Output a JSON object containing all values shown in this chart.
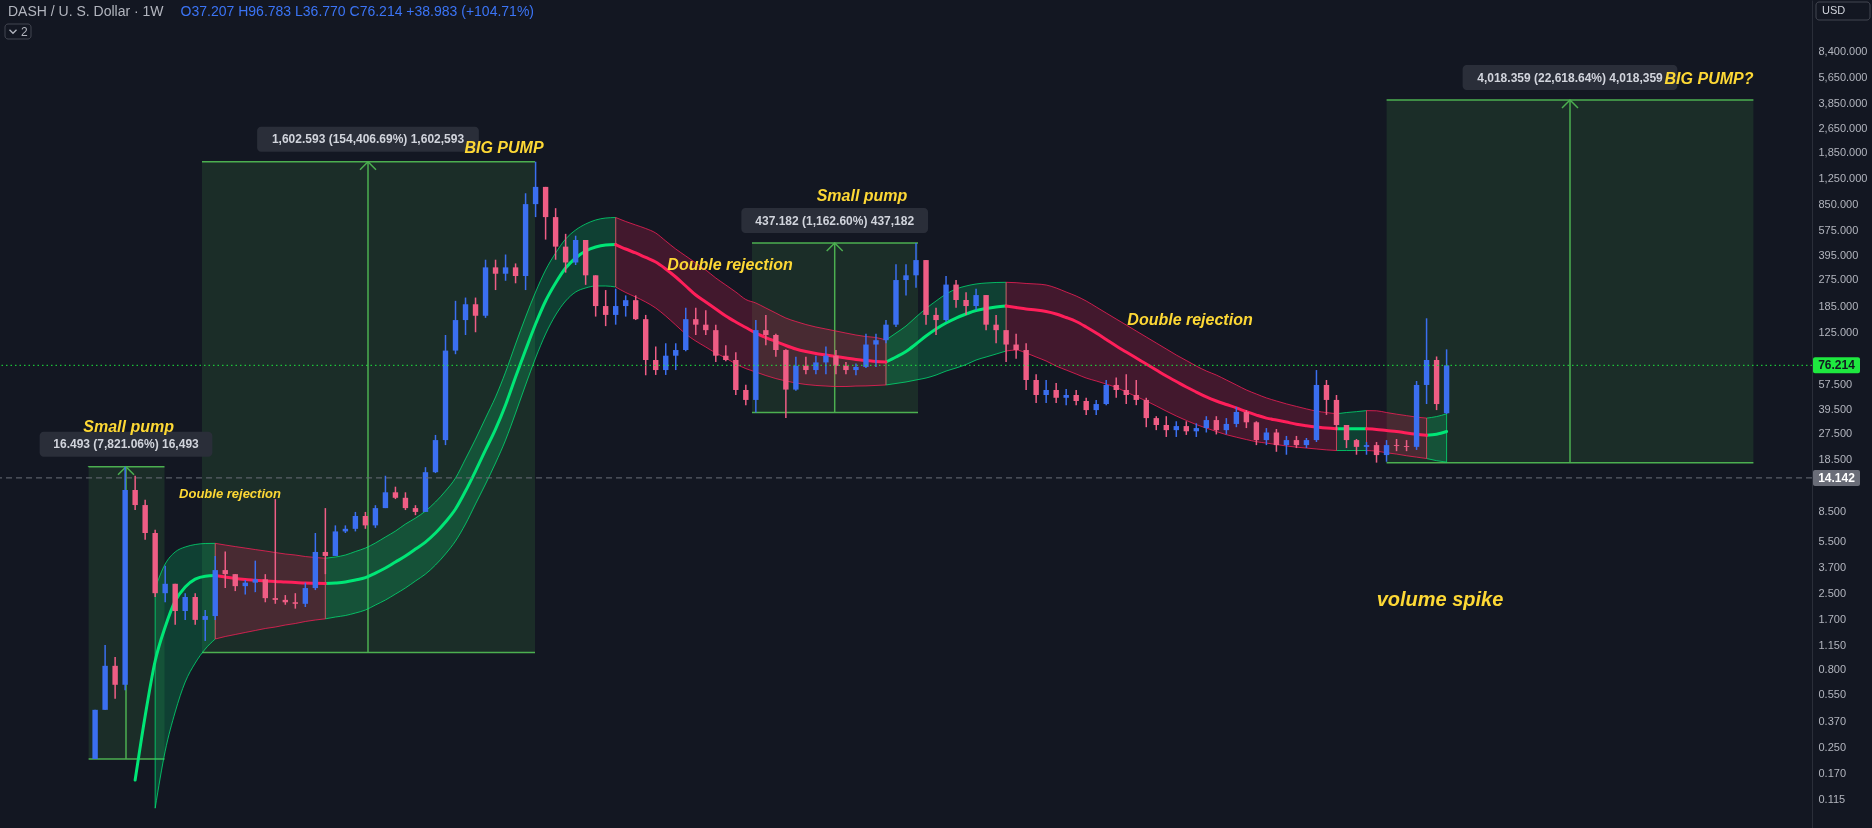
{
  "chart_data": {
    "type": "candlestick",
    "title": "DASH / U. S. Dollar · 1W",
    "subtitle": "O37.207 H96.783 L36.770 C76.214 +38.983 (+104.71%)",
    "ylabel": "USD",
    "log": true,
    "ylim": [
      0.0751,
      18020
    ],
    "yticks": [
      {
        "value": 8400,
        "label": "8,400.000"
      },
      {
        "value": 5650,
        "label": "5,650.000"
      },
      {
        "value": 3850,
        "label": "3,850.000"
      },
      {
        "value": 2650,
        "label": "2,650.000"
      },
      {
        "value": 1850,
        "label": "1,850.000"
      },
      {
        "value": 1250,
        "label": "1,250.000"
      },
      {
        "value": 850,
        "label": "850.000"
      },
      {
        "value": 575,
        "label": "575.000"
      },
      {
        "value": 395,
        "label": "395.000"
      },
      {
        "value": 275,
        "label": "275.000"
      },
      {
        "value": 185,
        "label": "185.000"
      },
      {
        "value": 125,
        "label": "125.000"
      },
      {
        "value": 57.5,
        "label": "57.500"
      },
      {
        "value": 39.5,
        "label": "39.500"
      },
      {
        "value": 27.5,
        "label": "27.500"
      },
      {
        "value": 18.5,
        "label": "18.500"
      },
      {
        "value": 8.5,
        "label": "8.500"
      },
      {
        "value": 5.5,
        "label": "5.500"
      },
      {
        "value": 3.7,
        "label": "3.700"
      },
      {
        "value": 2.5,
        "label": "2.500"
      },
      {
        "value": 1.7,
        "label": "1.700"
      },
      {
        "value": 1.15,
        "label": "1.150"
      },
      {
        "value": 0.8,
        "label": "0.800"
      },
      {
        "value": 0.55,
        "label": "0.550"
      },
      {
        "value": 0.37,
        "label": "0.370"
      },
      {
        "value": 0.25,
        "label": "0.250"
      },
      {
        "value": 0.17,
        "label": "0.170"
      },
      {
        "value": 0.115,
        "label": "0.115"
      }
    ],
    "categories": [
      null,
      null,
      null,
      null,
      null,
      null,
      null,
      null,
      null,
      null,
      null,
      null,
      null,
      null,
      null,
      null,
      null,
      null,
      null,
      null,
      null,
      null,
      null,
      null,
      null,
      null,
      null,
      null,
      null,
      null,
      null,
      null,
      null,
      null,
      null,
      null,
      null,
      null,
      null,
      null,
      null,
      null,
      null,
      null,
      null,
      null,
      null,
      null,
      null,
      null,
      null,
      null,
      null,
      null,
      null,
      null,
      null,
      null,
      null,
      null,
      null,
      null,
      null,
      null,
      null,
      null,
      null,
      null,
      null,
      null,
      null,
      null,
      null,
      null,
      null,
      null,
      null,
      null,
      null,
      null,
      null,
      null,
      null,
      null,
      null,
      null,
      null,
      null,
      null,
      null,
      null,
      null,
      null,
      null,
      null,
      null,
      null,
      null,
      null,
      null,
      null,
      null,
      null,
      null,
      null,
      null,
      null,
      null,
      null,
      null,
      null,
      null,
      null,
      null,
      null,
      null,
      null,
      null,
      null,
      null,
      null,
      null,
      null,
      null,
      null,
      null,
      null,
      null,
      null,
      null,
      null,
      null,
      null,
      null,
      null,
      null,
      null,
      null,
      null,
      null,
      null,
      null,
      null,
      null,
      null,
      null,
      null,
      null,
      null,
      null,
      null,
      null,
      null,
      null,
      null,
      null,
      null,
      null,
      null,
      null,
      null,
      null,
      null,
      null,
      null,
      null,
      null,
      null,
      null,
      null,
      null,
      null,
      null,
      null,
      null,
      null,
      null,
      null,
      null,
      null,
      null
    ],
    "ohlc": [
      null,
      null,
      null,
      null,
      null,
      null,
      null,
      null,
      null,
      [
        0.211,
        0.44,
        0.211,
        0.44
      ],
      [
        0.44,
        1.16,
        0.44,
        0.85
      ],
      [
        0.85,
        0.97,
        0.52,
        0.64
      ],
      [
        0.64,
        16.7,
        0.59,
        11.8
      ],
      [
        11.8,
        14.6,
        8.74,
        9.42
      ],
      [
        9.42,
        10.2,
        5.6,
        6.2
      ],
      [
        6.2,
        6.5,
        2.38,
        2.52
      ],
      [
        2.52,
        3.8,
        2.2,
        2.9
      ],
      [
        2.9,
        2.9,
        1.57,
        1.93
      ],
      [
        1.93,
        2.52,
        1.69,
        2.38
      ],
      [
        2.38,
        2.52,
        1.57,
        1.69
      ],
      [
        1.69,
        1.96,
        1.23,
        1.79
      ],
      [
        1.79,
        4.4,
        1.69,
        3.56
      ],
      [
        3.56,
        4.7,
        2.72,
        3.35
      ],
      [
        3.35,
        3.35,
        2.6,
        2.8
      ],
      [
        2.8,
        3.07,
        2.47,
        2.95
      ],
      [
        2.95,
        4.1,
        2.56,
        3.1
      ],
      [
        3.1,
        3.35,
        2.2,
        2.34
      ],
      [
        2.34,
        10.3,
        2.15,
        2.28
      ],
      [
        2.28,
        2.45,
        2.12,
        2.2
      ],
      [
        2.2,
        2.52,
        2.0,
        2.15
      ],
      [
        2.15,
        2.95,
        2.05,
        2.72
      ],
      [
        2.72,
        6.2,
        2.64,
        4.67
      ],
      [
        4.67,
        9.0,
        3.35,
        4.4
      ],
      [
        4.4,
        6.95,
        4.4,
        6.35
      ],
      [
        6.35,
        6.95,
        6.2,
        6.6
      ],
      [
        6.6,
        8.5,
        6.35,
        8.0
      ],
      [
        8.0,
        8.5,
        6.6,
        6.95
      ],
      [
        6.95,
        9.4,
        6.7,
        9.0
      ],
      [
        9.0,
        14.6,
        9.0,
        11.4
      ],
      [
        11.4,
        12.4,
        10.3,
        10.5
      ],
      [
        10.5,
        11.4,
        8.74,
        9.0
      ],
      [
        9.0,
        9.4,
        8.1,
        8.5
      ],
      [
        8.5,
        16.6,
        8.5,
        15.4
      ],
      [
        15.4,
        26.9,
        15.2,
        24.9
      ],
      [
        24.9,
        120,
        23.1,
        95
      ],
      [
        95,
        200,
        90,
        150
      ],
      [
        150,
        210,
        120,
        190
      ],
      [
        190,
        210,
        125,
        160
      ],
      [
        160,
        370,
        155,
        330
      ],
      [
        330,
        370,
        235,
        300
      ],
      [
        300,
        400,
        270,
        330
      ],
      [
        330,
        350,
        260,
        290
      ],
      [
        290,
        1000,
        235,
        850
      ],
      [
        850,
        1603.6,
        700,
        1100
      ],
      [
        1100,
        1100,
        500,
        700
      ],
      [
        700,
        800,
        370,
        450
      ],
      [
        450,
        545,
        305,
        355
      ],
      [
        355,
        530,
        342,
        497
      ],
      [
        497,
        497,
        254,
        293
      ],
      [
        293,
        293,
        158,
        185
      ],
      [
        185,
        235,
        137,
        162
      ],
      [
        162,
        240,
        140,
        185
      ],
      [
        185,
        217,
        158,
        202
      ],
      [
        202,
        217,
        150,
        152
      ],
      [
        152,
        162,
        65.7,
        82.5
      ],
      [
        82.5,
        101,
        66,
        71
      ],
      [
        71,
        106,
        66,
        88
      ],
      [
        88,
        106,
        71,
        95.8
      ],
      [
        95.8,
        180,
        94,
        152
      ],
      [
        152,
        180,
        120,
        140
      ],
      [
        140,
        174,
        120,
        129
      ],
      [
        129,
        140,
        80,
        88
      ],
      [
        88,
        103,
        81,
        82.5
      ],
      [
        82.5,
        92.5,
        48.9,
        52.7
      ],
      [
        52.7,
        57,
        42,
        45.4
      ],
      [
        45.4,
        150,
        37.6,
        129
      ],
      [
        129,
        162,
        103,
        120
      ],
      [
        120,
        122,
        86.5,
        95.8
      ],
      [
        95.8,
        97,
        34.6,
        53
      ],
      [
        53,
        86.5,
        52,
        75.6
      ],
      [
        75.6,
        86.5,
        66.6,
        71
      ],
      [
        71,
        88,
        66.6,
        79.6
      ],
      [
        79.6,
        101,
        66.6,
        88
      ],
      [
        88,
        95.8,
        66.6,
        75.6
      ],
      [
        75.6,
        80,
        66.6,
        71
      ],
      [
        71,
        78.4,
        65.6,
        74.4
      ],
      [
        74.4,
        122,
        73.3,
        104
      ],
      [
        104,
        122,
        74.4,
        111
      ],
      [
        111,
        150,
        106,
        140
      ],
      [
        140,
        346,
        135,
        273
      ],
      [
        273,
        346,
        217,
        293
      ],
      [
        293,
        474.8,
        243,
        368
      ],
      [
        368,
        368,
        140,
        162
      ],
      [
        162,
        180,
        120,
        150
      ],
      [
        150,
        290,
        146,
        255
      ],
      [
        255,
        273,
        180,
        202.5
      ],
      [
        202.5,
        227,
        162,
        185
      ],
      [
        185,
        240,
        174,
        218
      ],
      [
        218,
        218,
        129,
        140
      ],
      [
        140,
        162,
        106,
        129
      ],
      [
        129,
        129,
        80,
        104
      ],
      [
        104,
        122,
        84,
        95.8
      ],
      [
        95.8,
        106,
        52.7,
        61.2
      ],
      [
        61.2,
        66.6,
        43.3,
        48.9
      ],
      [
        48.9,
        61.2,
        43.3,
        52.7
      ],
      [
        52.7,
        58.5,
        43.3,
        46.9
      ],
      [
        46.9,
        53.4,
        42,
        48.9
      ],
      [
        48.9,
        52.7,
        42,
        44.7
      ],
      [
        44.7,
        46.9,
        36.3,
        39
      ],
      [
        39,
        45.4,
        36.3,
        42.7
      ],
      [
        42.7,
        61.2,
        42,
        56.8
      ],
      [
        56.8,
        63.6,
        46.9,
        52.7
      ],
      [
        52.7,
        66.6,
        42.7,
        48.9
      ],
      [
        48.9,
        61.2,
        42,
        45.4
      ],
      [
        45.4,
        46.9,
        30.2,
        34.6
      ],
      [
        34.6,
        35.6,
        28.9,
        31.2
      ],
      [
        31.2,
        35.6,
        26.1,
        28.9
      ],
      [
        28.9,
        33,
        26.1,
        30.7
      ],
      [
        30.7,
        33,
        26.9,
        28.4
      ],
      [
        28.4,
        32,
        26.1,
        29.8
      ],
      [
        29.8,
        35.6,
        27.9,
        33.6
      ],
      [
        33.6,
        35.6,
        27.1,
        28.9
      ],
      [
        28.9,
        34.6,
        27.1,
        31.7
      ],
      [
        31.7,
        40.9,
        30.2,
        37.9
      ],
      [
        37.9,
        39,
        29.8,
        32.5
      ],
      [
        32.5,
        33,
        23.1,
        24.9
      ],
      [
        24.9,
        29.8,
        23.1,
        27.9
      ],
      [
        27.9,
        29.4,
        20.9,
        23.1
      ],
      [
        23.1,
        26.5,
        20,
        24.9
      ],
      [
        24.9,
        26.5,
        22.1,
        23.1
      ],
      [
        23.1,
        25.7,
        22.1,
        24.9
      ],
      [
        24.9,
        71,
        24.2,
        56.8
      ],
      [
        56.8,
        61.2,
        36.3,
        45.4
      ],
      [
        45.4,
        48.9,
        28.9,
        31.2
      ],
      [
        31.2,
        31.2,
        22.1,
        24.9
      ],
      [
        24.9,
        25.3,
        20,
        22.5
      ],
      [
        22.5,
        24.2,
        20,
        23.1
      ],
      [
        23.1,
        24.2,
        17.77,
        19.9
      ],
      [
        19.9,
        24.9,
        18,
        23.1
      ],
      [
        23.1,
        25.3,
        21.1,
        22.8
      ],
      [
        22.8,
        24.9,
        21.1,
        22.5
      ],
      [
        22.5,
        60.3,
        21.5,
        56.8
      ],
      [
        56.8,
        154,
        42.7,
        82.5
      ],
      [
        82.5,
        87,
        39,
        42.7
      ],
      [
        37.207,
        96.783,
        36.77,
        76.214
      ],
      null,
      null,
      null,
      null,
      null,
      null,
      null,
      null,
      null,
      null,
      null,
      null,
      null,
      null,
      null,
      null,
      null,
      null,
      null,
      null,
      null,
      null,
      null,
      null,
      null,
      null,
      null,
      null,
      null,
      null,
      null,
      null,
      null,
      null,
      null,
      null
    ],
    "colors": [
      null,
      null,
      null,
      null,
      null,
      null,
      null,
      null,
      null,
      "#3b6ff0",
      "#3b6ff0",
      "#ef5d85",
      "#3b6ff0",
      "#ef5d85",
      "#ef5d85",
      "#ef5d85",
      "#3b6ff0",
      "#ef5d85",
      "#3b6ff0",
      "#ef5d85",
      "#3b6ff0",
      "#3b6ff0",
      "#ef5d85",
      "#ef5d85",
      "#3b6ff0",
      "#3b6ff0",
      "#ef5d85",
      "#ef5d85",
      "#ef5d85",
      "#ef5d85",
      "#3b6ff0",
      "#3b6ff0",
      "#ef5d85",
      "#3b6ff0",
      "#3b6ff0",
      "#3b6ff0",
      "#ef5d85",
      "#3b6ff0",
      "#3b6ff0",
      "#ef5d85",
      "#ef5d85",
      "#ef5d85",
      "#3b6ff0",
      "#3b6ff0",
      "#3b6ff0",
      "#3b6ff0",
      "#3b6ff0",
      "#ef5d85",
      "#3b6ff0",
      "#ef5d85",
      "#3b6ff0",
      "#ef5d85",
      "#3b6ff0",
      "#3b6ff0",
      "#ef5d85",
      "#ef5d85",
      "#ef5d85",
      "#3b6ff0",
      "#ef5d85",
      "#ef5d85",
      "#ef5d85",
      "#3b6ff0",
      "#3b6ff0",
      "#ef5d85",
      "#ef5d85",
      "#ef5d85",
      "#3b6ff0",
      "#3b6ff0",
      "#3b6ff0",
      "#ef5d85",
      "#ef5d85",
      "#ef5d85",
      "#ef5d85",
      "#ef5d85",
      "#ef5d85",
      "#3b6ff0",
      "#ef5d85",
      "#ef5d85",
      "#ef5d85",
      "#3b6ff0",
      "#ef5d85",
      "#3b6ff0",
      "#3b6ff0",
      "#ef5d85",
      "#ef5d85",
      "#3b6ff0",
      "#3b6ff0",
      "#3b6ff0",
      "#3b6ff0",
      "#3b6ff0",
      "#3b6ff0",
      "#3b6ff0",
      "#ef5d85",
      "#ef5d85",
      "#3b6ff0",
      "#ef5d85",
      "#ef5d85",
      "#3b6ff0",
      "#ef5d85",
      "#ef5d85",
      "#ef5d85",
      "#ef5d85",
      "#ef5d85",
      "#ef5d85",
      "#3b6ff0",
      "#ef5d85",
      "#3b6ff0",
      "#ef5d85",
      "#ef5d85",
      "#3b6ff0",
      "#3b6ff0",
      "#ef5d85",
      "#ef5d85",
      "#ef5d85",
      "#ef5d85",
      "#ef5d85",
      "#ef5d85",
      "#3b6ff0",
      "#ef5d85",
      "#3b6ff0",
      "#3b6ff0",
      "#ef5d85",
      "#3b6ff0",
      "#3b6ff0",
      "#ef5d85",
      "#ef5d85",
      "#3b6ff0",
      "#ef5d85",
      "#3b6ff0",
      "#ef5d85",
      "#3b6ff0",
      "#3b6ff0",
      "#ef5d85",
      "#ef5d85",
      "#ef5d85",
      "#ef5d85",
      "#3b6ff0",
      "#ef5d85",
      "#3b6ff0",
      "#ef5d85",
      "#ef5d85",
      "#3b6ff0",
      "#3b6ff0",
      "#ef5d85",
      "#3b6ff0",
      null,
      null,
      null,
      null,
      null,
      null,
      null,
      null,
      null,
      null,
      null,
      null,
      null,
      null,
      null,
      null,
      null,
      null,
      null,
      null,
      null,
      null,
      null,
      null,
      null,
      null,
      null,
      null,
      null,
      null,
      null,
      null,
      null,
      null,
      null,
      null
    ],
    "series": [
      {
        "type": "line",
        "color": "#00e676",
        "values": [
          null,
          null,
          null,
          null,
          null,
          null,
          null,
          null,
          null,
          null,
          null,
          null,
          null,
          0.154,
          0.401,
          0.913,
          1.519,
          2.241,
          2.765,
          3.11,
          3.25,
          3.28,
          null,
          null,
          null,
          null,
          null,
          null,
          null,
          null,
          null,
          null,
          2.909,
          2.935,
          2.979,
          3.07,
          3.182,
          3.404,
          3.673,
          4.018,
          4.397,
          4.877,
          5.415,
          6.196,
          7.308,
          8.88,
          11.62,
          15.67,
          21.5,
          29.37,
          42.13,
          63.9,
          95.8,
          141.4,
          199.5,
          261.2,
          326.9,
          379.7,
          421.6,
          447.5,
          461.1,
          464.5,
          null,
          null,
          null,
          null,
          null,
          null,
          null,
          null,
          null,
          null,
          null,
          null,
          null,
          null,
          null,
          null,
          null,
          null,
          null,
          null,
          null,
          null,
          null,
          null,
          null,
          null,
          80.1,
          86.3,
          93.7,
          104.8,
          118.1,
          131.2,
          143.5,
          154.6,
          164.2,
          173.0,
          178.3,
          182.4,
          185.1,
          null,
          null,
          null,
          null,
          null,
          null,
          null,
          null,
          null,
          null,
          null,
          null,
          null,
          null,
          null,
          null,
          null,
          null,
          null,
          null,
          null,
          null,
          null,
          null,
          null,
          null,
          null,
          null,
          null,
          null,
          null,
          null,
          29.5,
          29.5,
          29.5,
          29.5,
          null,
          null,
          null,
          null,
          null,
          26.8,
          27.2,
          28.3,
          null,
          null,
          null,
          null,
          null,
          null,
          null,
          null,
          null,
          null,
          null,
          null,
          null,
          null,
          null,
          null,
          null,
          null,
          null,
          null,
          null,
          null,
          null,
          null,
          null,
          null,
          null,
          null,
          null,
          null,
          null,
          null,
          null,
          null,
          null,
          null
        ],
        "upper": [
          null,
          null,
          null,
          null,
          null,
          null,
          null,
          null,
          null,
          null,
          null,
          null,
          null,
          null,
          null,
          2.72,
          3.9,
          4.67,
          5.03,
          5.22,
          5.3,
          5.31,
          null,
          null,
          null,
          null,
          null,
          null,
          null,
          null,
          null,
          null,
          4.25,
          4.33,
          4.46,
          4.7,
          4.95,
          5.34,
          5.84,
          6.38,
          7.09,
          7.75,
          8.61,
          9.86,
          11.62,
          14.11,
          18.79,
          25.26,
          34.6,
          47.46,
          68.9,
          104.8,
          157.0,
          228.2,
          317.2,
          409.2,
          504.4,
          577.1,
          631.3,
          670.3,
          690.6,
          695.8,
          null,
          null,
          null,
          null,
          null,
          null,
          null,
          null,
          null,
          null,
          null,
          null,
          null,
          null,
          null,
          null,
          null,
          null,
          null,
          null,
          null,
          null,
          null,
          null,
          null,
          null,
          111.3,
          123.5,
          137.2,
          157.0,
          178.3,
          199.5,
          221.4,
          238.8,
          249.7,
          257.3,
          261.2,
          263.2,
          263.9,
          null,
          null,
          null,
          null,
          null,
          null,
          null,
          null,
          null,
          null,
          null,
          null,
          null,
          null,
          null,
          null,
          null,
          null,
          null,
          null,
          null,
          null,
          null,
          null,
          null,
          null,
          null,
          null,
          null,
          null,
          null,
          null,
          36.9,
          37.6,
          38.1,
          38.7,
          null,
          null,
          null,
          null,
          null,
          34.6,
          35.4,
          36.9,
          null,
          null,
          null,
          null,
          null,
          null,
          null,
          null,
          null,
          null,
          null,
          null,
          null,
          null,
          null,
          null,
          null,
          null,
          null,
          null,
          null,
          null,
          null,
          null,
          null,
          null,
          null,
          null,
          null,
          null,
          null,
          null,
          null,
          null,
          null,
          null
        ],
        "lower": [
          null,
          null,
          null,
          null,
          null,
          null,
          null,
          null,
          null,
          null,
          null,
          null,
          null,
          null,
          null,
          0.101,
          0.237,
          0.426,
          0.667,
          0.886,
          1.093,
          1.27,
          null,
          null,
          null,
          null,
          null,
          null,
          null,
          null,
          null,
          null,
          1.717,
          1.764,
          1.804,
          1.873,
          1.959,
          2.111,
          2.275,
          2.487,
          2.724,
          3.024,
          3.353,
          3.841,
          4.53,
          5.5,
          7.09,
          9.57,
          12.9,
          17.67,
          24.9,
          37.29,
          56.8,
          85.0,
          121.7,
          161.7,
          199.5,
          228.2,
          242.4,
          249.7,
          249.7,
          246.0,
          null,
          null,
          null,
          null,
          null,
          null,
          null,
          null,
          null,
          null,
          null,
          null,
          null,
          null,
          null,
          null,
          null,
          null,
          null,
          null,
          null,
          null,
          null,
          null,
          null,
          null,
          56.8,
          58.1,
          59.4,
          61.2,
          63.0,
          65.9,
          69.9,
          73.2,
          77.1,
          82.5,
          86.3,
          90.2,
          94.4,
          null,
          null,
          null,
          null,
          null,
          null,
          null,
          null,
          null,
          null,
          null,
          null,
          null,
          null,
          null,
          null,
          null,
          null,
          null,
          null,
          null,
          null,
          null,
          null,
          null,
          null,
          null,
          null,
          null,
          null,
          null,
          null,
          21.3,
          21.3,
          21.3,
          21.3,
          null,
          null,
          null,
          null,
          null,
          18.9,
          18.3,
          17.9,
          null,
          null,
          null,
          null,
          null,
          null,
          null,
          null,
          null,
          null,
          null,
          null,
          null,
          null,
          null,
          null,
          null,
          null,
          null,
          null,
          null,
          null,
          null,
          null,
          null,
          null,
          null,
          null,
          null,
          null,
          null,
          null,
          null,
          null,
          null,
          null
        ]
      },
      {
        "type": "line",
        "color": "#ff1f5a",
        "values": [
          null,
          null,
          null,
          null,
          null,
          null,
          null,
          null,
          null,
          null,
          null,
          null,
          null,
          null,
          null,
          null,
          null,
          null,
          null,
          null,
          null,
          3.28,
          3.206,
          3.135,
          3.088,
          3.056,
          3.024,
          3.006,
          2.979,
          2.957,
          2.935,
          2.922,
          2.909,
          null,
          null,
          null,
          null,
          null,
          null,
          null,
          null,
          null,
          null,
          null,
          null,
          null,
          null,
          null,
          null,
          null,
          null,
          null,
          null,
          null,
          null,
          null,
          null,
          null,
          null,
          null,
          null,
          464.5,
          434.3,
          409.2,
          382.6,
          357.6,
          322.1,
          285.7,
          249.7,
          218.2,
          196.5,
          177.0,
          159.3,
          145.7,
          134.2,
          123.5,
          115.5,
          108.8,
          102.5,
          97.3,
          93.7,
          90.9,
          88.9,
          86.9,
          85.0,
          83.1,
          81.9,
          80.7,
          80.1,
          null,
          null,
          null,
          null,
          null,
          null,
          null,
          null,
          null,
          null,
          null,
          185.1,
          181.0,
          177.0,
          174.3,
          170.4,
          164.2,
          155.8,
          146.8,
          135.2,
          123.5,
          112.1,
          101.7,
          93.0,
          85.0,
          77.7,
          71.0,
          64.9,
          59.8,
          55.1,
          51.1,
          47.5,
          44.7,
          42.4,
          40.3,
          38.1,
          36.2,
          34.6,
          33.6,
          32.6,
          31.6,
          30.9,
          30.3,
          29.8,
          29.5,
          null,
          null,
          29.5,
          29.2,
          28.7,
          28.3,
          27.7,
          27.2,
          26.8,
          null,
          null,
          null,
          null,
          null,
          null,
          null,
          null,
          null,
          null,
          null,
          null,
          null,
          null,
          null,
          null,
          null,
          null,
          null,
          null,
          null,
          null,
          null,
          null,
          null,
          null,
          null,
          null,
          null,
          null,
          null,
          null,
          null,
          null,
          null,
          null,
          null,
          null
        ],
        "upper": [
          null,
          null,
          null,
          null,
          null,
          null,
          null,
          null,
          null,
          null,
          null,
          null,
          null,
          null,
          null,
          null,
          null,
          null,
          null,
          null,
          null,
          5.31,
          5.18,
          5.06,
          4.95,
          4.84,
          4.74,
          4.63,
          4.53,
          4.46,
          4.36,
          4.3,
          4.25,
          null,
          null,
          null,
          null,
          null,
          null,
          null,
          null,
          null,
          null,
          null,
          null,
          null,
          null,
          null,
          null,
          null,
          null,
          null,
          null,
          null,
          null,
          null,
          null,
          null,
          null,
          null,
          null,
          695.8,
          655.4,
          622.0,
          590.3,
          551.8,
          489.5,
          434.3,
          391.3,
          352.3,
          317.2,
          281.4,
          253.5,
          228.2,
          204.0,
          193.6,
          179.6,
          166.6,
          154.6,
          146.8,
          140.3,
          135.2,
          131.2,
          127.3,
          123.5,
          119.9,
          117.2,
          115.5,
          111.3,
          null,
          null,
          null,
          null,
          null,
          null,
          null,
          null,
          null,
          null,
          null,
          263.9,
          262.4,
          259.3,
          257.3,
          253.5,
          242.4,
          228.2,
          214.9,
          199.5,
          182.4,
          166.6,
          152.3,
          139.3,
          127.3,
          116.4,
          106.4,
          97.3,
          88.9,
          81.9,
          75.4,
          70.0,
          65.9,
          61.2,
          56.8,
          52.7,
          49.6,
          46.8,
          44.7,
          42.8,
          41.2,
          39.7,
          38.4,
          37.6,
          36.9,
          null,
          null,
          38.7,
          38.6,
          37.6,
          36.7,
          35.9,
          35.1,
          34.6,
          null,
          null,
          null,
          null,
          null,
          null,
          null,
          null,
          null,
          null,
          null,
          null,
          null,
          null,
          null,
          null,
          null,
          null,
          null,
          null,
          null,
          null,
          null,
          null,
          null,
          null,
          null,
          null,
          null,
          null,
          null,
          null,
          null,
          null,
          null,
          null,
          null,
          null
        ],
        "lower": [
          null,
          null,
          null,
          null,
          null,
          null,
          null,
          null,
          null,
          null,
          null,
          null,
          null,
          null,
          null,
          null,
          null,
          null,
          null,
          null,
          null,
          1.27,
          1.318,
          1.358,
          1.4,
          1.442,
          1.486,
          1.519,
          1.565,
          1.601,
          1.65,
          1.687,
          1.717,
          null,
          null,
          null,
          null,
          null,
          null,
          null,
          null,
          null,
          null,
          null,
          null,
          null,
          null,
          null,
          null,
          null,
          null,
          null,
          null,
          null,
          null,
          null,
          null,
          null,
          null,
          null,
          null,
          246.0,
          226.5,
          211.7,
          196.5,
          179.6,
          159.3,
          139.3,
          121.7,
          109.6,
          100.2,
          91.6,
          85.0,
          77.7,
          72.6,
          68.9,
          65.4,
          62.5,
          60.3,
          58.5,
          57.2,
          56.4,
          55.9,
          55.5,
          55.5,
          55.9,
          56.0,
          56.4,
          56.8,
          null,
          null,
          null,
          null,
          null,
          null,
          null,
          null,
          null,
          null,
          null,
          94.4,
          95.8,
          91.6,
          86.3,
          81.3,
          75.4,
          71.0,
          66.9,
          63.0,
          60.3,
          57.6,
          54.7,
          51.1,
          47.8,
          44.7,
          41.5,
          38.4,
          35.7,
          33.4,
          31.4,
          29.8,
          28.3,
          27.0,
          26.0,
          25.1,
          24.3,
          23.8,
          23.3,
          22.8,
          22.4,
          22.1,
          21.8,
          21.5,
          21.3,
          null,
          null,
          21.3,
          21.1,
          20.6,
          20.2,
          19.7,
          19.3,
          18.9,
          null,
          null,
          null,
          null,
          null,
          null,
          null,
          null,
          null,
          null,
          null,
          null,
          null,
          null,
          null,
          null,
          null,
          null,
          null,
          null,
          null,
          null,
          null,
          null,
          null,
          null,
          null,
          null,
          null,
          null,
          null,
          null,
          null,
          null,
          null,
          null,
          null,
          null
        ]
      }
    ],
    "bands": [
      {
        "axis": "y",
        "from": 0.21088,
        "to": 16.704,
        "label": "16.493 (7,821.06%) 16,493",
        "color": "#4caf50"
      },
      {
        "axis": "y",
        "from": 1.0379,
        "to": 1603.63,
        "label": "1,602.593 (154,406.69%) 1,602,593",
        "color": "#4caf50"
      },
      {
        "axis": "y",
        "from": 37.604,
        "to": 474.786,
        "label": "437.182 (1,162.60%) 437,182",
        "color": "#4caf50"
      },
      {
        "axis": "y",
        "from": 17.766,
        "to": 4036.125,
        "label": "4,018.359 (22,618.64%) 4,018,359",
        "color": "#4caf50"
      }
    ],
    "ref_lines": [
      {
        "axis": "y",
        "value": 76.214,
        "label": "76.214",
        "color": "#1ee83f",
        "line_style": "dotted"
      },
      {
        "axis": "y",
        "value": 14.142,
        "label": "14.142",
        "color": "#6a6d78",
        "line_style": "dashed"
      }
    ],
    "annotations": [
      "2",
      "Small pump",
      "Double rejection",
      "BIG PUMP",
      "Small pump",
      "Double rejection",
      "Double rejection",
      "BIG PUMP?",
      "volume spike"
    ]
  }
}
